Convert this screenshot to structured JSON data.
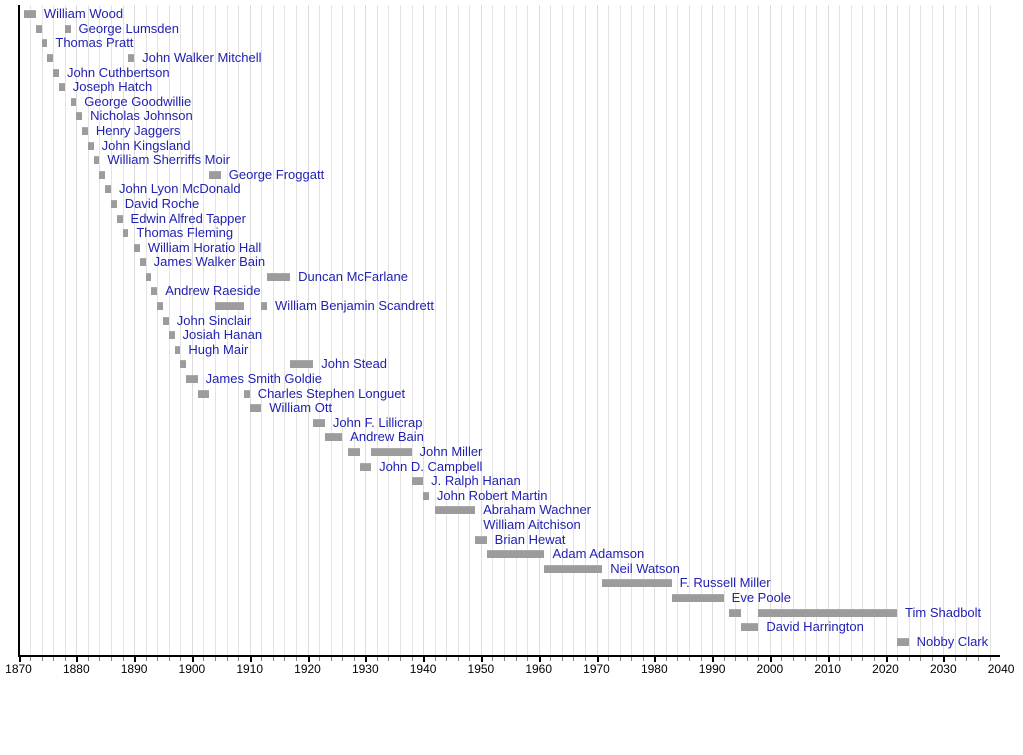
{
  "chart_data": {
    "type": "bar",
    "variant": "horizontal-timeline-gantt",
    "title": "",
    "xlabel": "",
    "ylabel": "",
    "legend": "none",
    "grid": "vertical, every 2 years",
    "x_axis": {
      "min": 1870,
      "max": 2040,
      "tick_step_years": 10,
      "minor_grid_step_years": 2,
      "tick_labels": [
        "1870",
        "1880",
        "1890",
        "1900",
        "1910",
        "1920",
        "1930",
        "1940",
        "1950",
        "1960",
        "1970",
        "1980",
        "1990",
        "2000",
        "2010",
        "2020",
        "2030",
        "2040"
      ]
    },
    "colors": {
      "bar": "#9c9c9c",
      "name_link": "#2222b2",
      "axis": "#000000",
      "gridline": "#e3e3e3",
      "background": "#ffffff"
    },
    "people": [
      {
        "name": "William Wood",
        "terms": [
          [
            1871,
            1873
          ]
        ]
      },
      {
        "name": "George Lumsden",
        "terms": [
          [
            1873,
            1874
          ],
          [
            1878,
            1879
          ]
        ]
      },
      {
        "name": "Thomas Pratt",
        "terms": [
          [
            1874,
            1875
          ]
        ]
      },
      {
        "name": "John Walker Mitchell",
        "terms": [
          [
            1875,
            1876
          ],
          [
            1889,
            1890
          ]
        ]
      },
      {
        "name": "John Cuthbertson",
        "terms": [
          [
            1876,
            1877
          ]
        ]
      },
      {
        "name": "Joseph Hatch",
        "terms": [
          [
            1877,
            1878
          ]
        ]
      },
      {
        "name": "George Goodwillie",
        "terms": [
          [
            1879,
            1880
          ]
        ]
      },
      {
        "name": "Nicholas Johnson",
        "terms": [
          [
            1880,
            1881
          ]
        ]
      },
      {
        "name": "Henry Jaggers",
        "terms": [
          [
            1881,
            1882
          ]
        ]
      },
      {
        "name": "John Kingsland",
        "terms": [
          [
            1882,
            1883
          ]
        ]
      },
      {
        "name": "William Sherriffs Moir",
        "terms": [
          [
            1883,
            1884
          ]
        ]
      },
      {
        "name": "George Froggatt",
        "terms": [
          [
            1884,
            1885
          ],
          [
            1903,
            1905
          ]
        ]
      },
      {
        "name": "John Lyon McDonald",
        "terms": [
          [
            1885,
            1886
          ]
        ]
      },
      {
        "name": "David Roche",
        "terms": [
          [
            1886,
            1887
          ]
        ]
      },
      {
        "name": "Edwin Alfred Tapper",
        "terms": [
          [
            1887,
            1888
          ]
        ]
      },
      {
        "name": "Thomas Fleming",
        "terms": [
          [
            1888,
            1889
          ]
        ]
      },
      {
        "name": "William Horatio Hall",
        "terms": [
          [
            1890,
            1891
          ]
        ]
      },
      {
        "name": "James Walker Bain",
        "terms": [
          [
            1891,
            1892
          ]
        ]
      },
      {
        "name": "Duncan McFarlane",
        "terms": [
          [
            1892,
            1893
          ],
          [
            1913,
            1917
          ]
        ]
      },
      {
        "name": "Andrew Raeside",
        "terms": [
          [
            1893,
            1894
          ]
        ]
      },
      {
        "name": "William Benjamin Scandrett",
        "terms": [
          [
            1894,
            1895
          ],
          [
            1904,
            1909
          ],
          [
            1912,
            1913
          ]
        ]
      },
      {
        "name": "John Sinclair",
        "terms": [
          [
            1895,
            1896
          ]
        ]
      },
      {
        "name": "Josiah Hanan",
        "terms": [
          [
            1896,
            1897
          ]
        ]
      },
      {
        "name": "Hugh Mair",
        "terms": [
          [
            1897,
            1898
          ]
        ]
      },
      {
        "name": "John Stead",
        "terms": [
          [
            1898,
            1899
          ],
          [
            1917,
            1921
          ]
        ]
      },
      {
        "name": "James Smith Goldie",
        "terms": [
          [
            1899,
            1901
          ]
        ]
      },
      {
        "name": "Charles Stephen Longuet",
        "terms": [
          [
            1901,
            1903
          ],
          [
            1909,
            1910
          ]
        ]
      },
      {
        "name": "William Ott",
        "terms": [
          [
            1910,
            1912
          ]
        ]
      },
      {
        "name": "John F. Lillicrap",
        "terms": [
          [
            1921,
            1923
          ]
        ]
      },
      {
        "name": "Andrew Bain",
        "terms": [
          [
            1923,
            1926
          ]
        ]
      },
      {
        "name": "John Miller",
        "terms": [
          [
            1927,
            1929
          ],
          [
            1931,
            1938
          ]
        ]
      },
      {
        "name": "John D. Campbell",
        "terms": [
          [
            1929,
            1931
          ]
        ]
      },
      {
        "name": "J. Ralph Hanan",
        "terms": [
          [
            1938,
            1940
          ]
        ]
      },
      {
        "name": "John Robert Martin",
        "terms": [
          [
            1940,
            1941
          ]
        ]
      },
      {
        "name": "Abraham Wachner",
        "terms": [
          [
            1942,
            1949
          ]
        ]
      },
      {
        "name": "William Aitchison",
        "terms": [],
        "label_year": 1950.4
      },
      {
        "name": "Brian Hewat",
        "terms": [
          [
            1949,
            1951
          ]
        ]
      },
      {
        "name": "Adam Adamson",
        "terms": [
          [
            1951,
            1961
          ]
        ]
      },
      {
        "name": "Neil Watson",
        "terms": [
          [
            1961,
            1971
          ]
        ]
      },
      {
        "name": "F. Russell Miller",
        "terms": [
          [
            1971,
            1983
          ]
        ]
      },
      {
        "name": "Eve Poole",
        "terms": [
          [
            1983,
            1992
          ]
        ]
      },
      {
        "name": "Tim Shadbolt",
        "terms": [
          [
            1993,
            1995
          ],
          [
            1998,
            2022
          ]
        ]
      },
      {
        "name": "David Harrington",
        "terms": [
          [
            1995,
            1998
          ]
        ]
      },
      {
        "name": "Nobby Clark",
        "terms": [
          [
            2022,
            2024
          ]
        ]
      }
    ]
  }
}
